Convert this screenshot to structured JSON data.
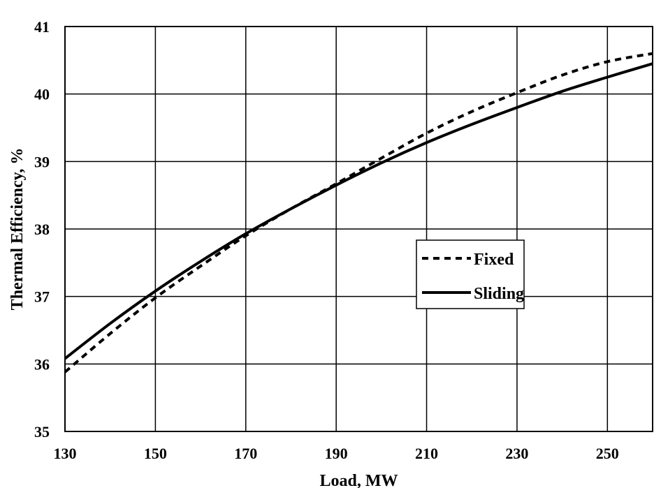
{
  "chart_data": {
    "type": "line",
    "xlabel": "Load, MW",
    "ylabel": "Thermal Efficiency, %",
    "xlim": [
      130,
      260
    ],
    "ylim": [
      35,
      41
    ],
    "xticks": [
      130,
      150,
      170,
      190,
      210,
      230,
      250
    ],
    "yticks": [
      35,
      36,
      37,
      38,
      39,
      40,
      41
    ],
    "grid": true,
    "legend_position": "center-right",
    "series": [
      {
        "name": "Fixed",
        "style": "dashed",
        "color": "#000000",
        "x": [
          130,
          140,
          150,
          160,
          170,
          180,
          190,
          200,
          210,
          220,
          230,
          240,
          250,
          260
        ],
        "y": [
          35.88,
          36.45,
          36.98,
          37.45,
          37.9,
          38.3,
          38.67,
          39.05,
          39.42,
          39.74,
          40.02,
          40.28,
          40.48,
          40.6
        ]
      },
      {
        "name": "Sliding",
        "style": "solid",
        "color": "#000000",
        "x": [
          130,
          140,
          150,
          160,
          170,
          180,
          190,
          200,
          210,
          220,
          230,
          240,
          250,
          260
        ],
        "y": [
          36.08,
          36.6,
          37.08,
          37.52,
          37.93,
          38.3,
          38.65,
          38.98,
          39.28,
          39.55,
          39.8,
          40.04,
          40.25,
          40.45
        ]
      }
    ]
  }
}
